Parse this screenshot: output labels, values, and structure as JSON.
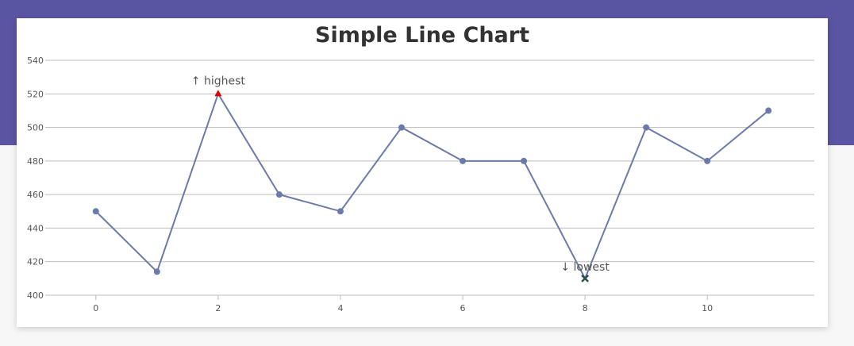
{
  "colors": {
    "banner": "#5a55a3",
    "line": "#6b7aa8",
    "highest_marker": "#e00000",
    "lowest_marker": "#2f4f4f",
    "grid": "#bbbbbb",
    "tick_text": "#555555"
  },
  "chart_data": {
    "type": "line",
    "title": "Simple Line Chart",
    "x": [
      0,
      1,
      2,
      3,
      4,
      5,
      6,
      7,
      8,
      9,
      10,
      11
    ],
    "values": [
      450,
      414,
      520,
      460,
      450,
      500,
      480,
      480,
      410,
      500,
      480,
      510
    ],
    "xlim": [
      -0.75,
      11.75
    ],
    "ylim": [
      400,
      540
    ],
    "x_ticks": [
      0,
      2,
      4,
      6,
      8,
      10
    ],
    "y_ticks": [
      400,
      420,
      440,
      460,
      480,
      500,
      520,
      540
    ],
    "grid": true,
    "annotations": [
      {
        "index": 2,
        "text": "↑ highest",
        "marker": "triangle",
        "color": "#e00000"
      },
      {
        "index": 8,
        "text": "↓ lowest",
        "marker": "cross",
        "color": "#2f4f4f"
      }
    ]
  }
}
